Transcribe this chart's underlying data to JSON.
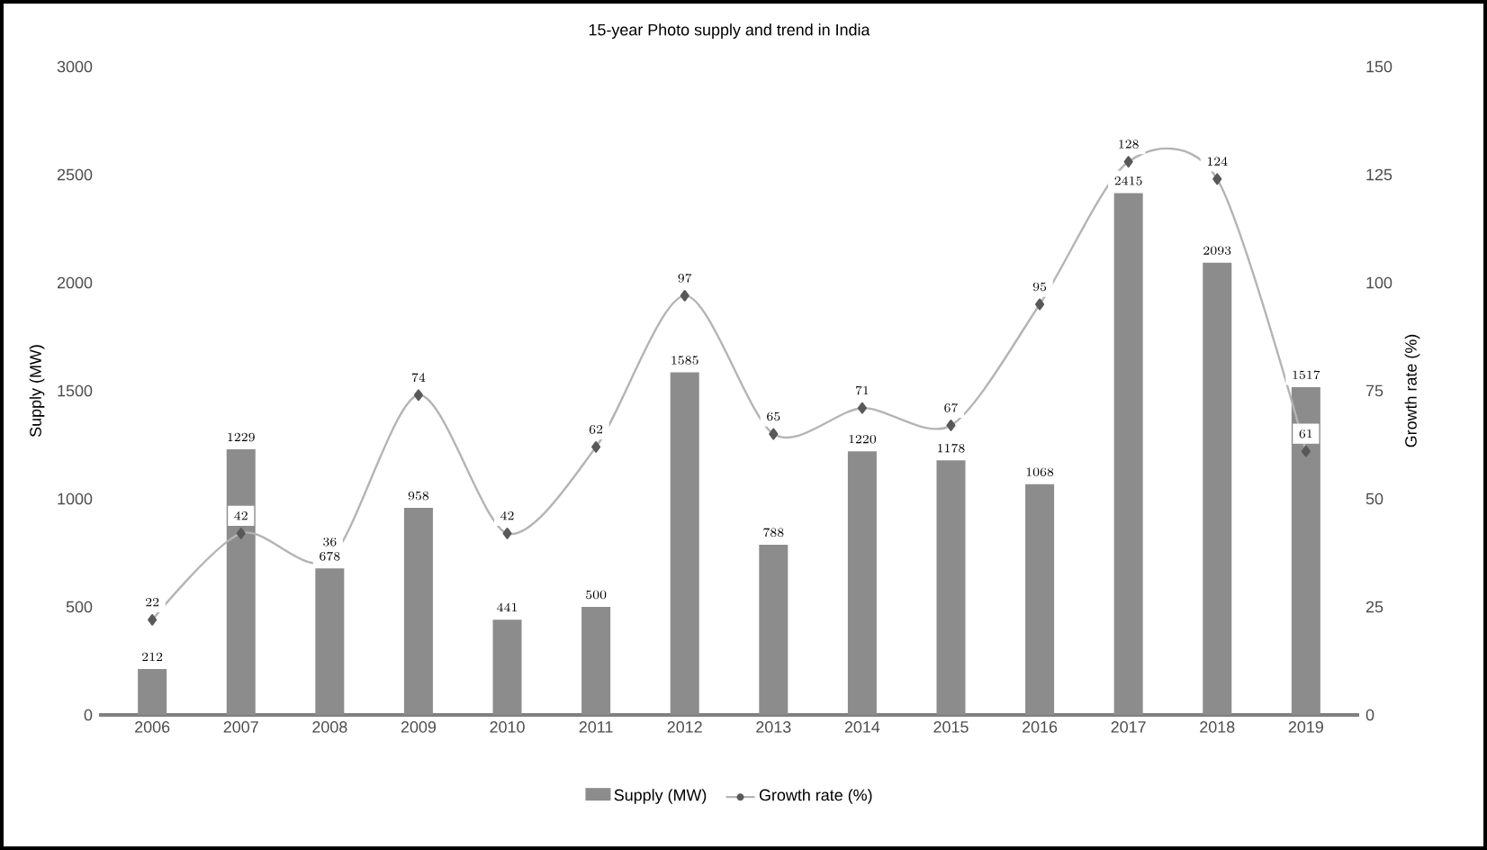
{
  "chart_data": {
    "type": "bar",
    "title": "15-year Photo supply and trend in India",
    "ylabel": "Supply (MW)",
    "y2label": "Growth rate (%)",
    "categories": [
      "2006",
      "2007",
      "2008",
      "2009",
      "2010",
      "2011",
      "2012",
      "2013",
      "2014",
      "2015",
      "2016",
      "2017",
      "2018",
      "2019"
    ],
    "series": [
      {
        "name": "Supply (MW)",
        "color": "#8c8c8c",
        "values": [
          212,
          1229,
          678,
          958,
          441,
          500,
          1585,
          788,
          1220,
          1178,
          1068,
          2415,
          2093,
          1517
        ]
      },
      {
        "name": "Growth rate (%)",
        "type": "line",
        "axis": "y2",
        "color": "#b4b4b4",
        "marker": "diamond",
        "values": [
          22,
          42,
          36,
          74,
          42,
          62,
          97,
          65,
          71,
          67,
          95,
          128,
          124,
          61
        ]
      }
    ],
    "ylim": [
      0,
      3000
    ],
    "yticks": [
      0,
      500,
      1000,
      1500,
      2000,
      2500,
      3000
    ],
    "y2lim": [
      0,
      150
    ],
    "y2ticks": [
      0,
      25,
      50,
      75,
      100,
      125,
      150
    ],
    "data_labels": true,
    "legend": "bottom",
    "grid": false
  }
}
